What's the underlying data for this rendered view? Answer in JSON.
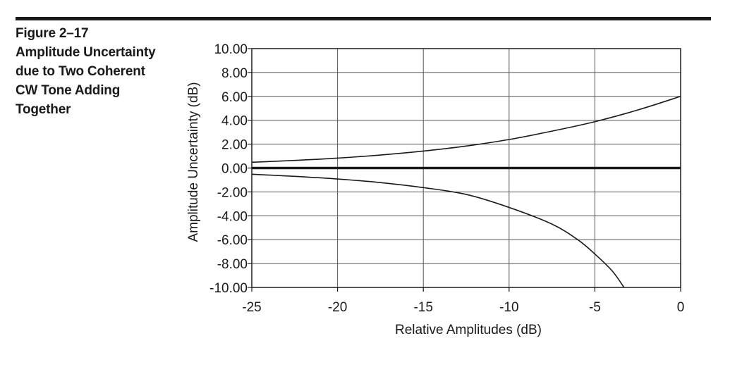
{
  "figure": {
    "label": "Figure 2–17",
    "caption_lines": [
      "Amplitude Uncertainty",
      "due to Two Coherent",
      "CW Tone Adding",
      "Together"
    ]
  },
  "chart_data": {
    "type": "line",
    "xlabel": "Relative Amplitudes (dB)",
    "ylabel": "Amplitude Uncertainty (dB)",
    "xlim": [
      -25,
      0
    ],
    "ylim": [
      -10,
      10
    ],
    "x_ticks": [
      -25,
      -20,
      -15,
      -10,
      -5,
      0
    ],
    "x_tick_labels": [
      "-25",
      "-20",
      "-15",
      "-10",
      "-5",
      "0"
    ],
    "y_ticks": [
      10,
      8,
      6,
      4,
      2,
      0,
      -2,
      -4,
      -6,
      -8,
      -10
    ],
    "y_tick_labels": [
      "10.00",
      "8.00",
      "6.00",
      "4.00",
      "2.00",
      "0.00",
      "-2.00",
      "-4.00",
      "-6.00",
      "-8.00",
      "-10.00"
    ],
    "grid": true,
    "zero_line": true,
    "series": [
      {
        "x": [
          -25,
          -22.5,
          -20,
          -17.5,
          -15,
          -12.5,
          -10,
          -7.5,
          -5,
          -2.5,
          0
        ],
        "values": [
          0.48,
          0.64,
          0.83,
          1.09,
          1.42,
          1.84,
          2.39,
          3.09,
          3.88,
          4.86,
          6.0
        ]
      },
      {
        "x": [
          -25,
          -22.5,
          -20,
          -17.5,
          -15,
          -12.5,
          -10,
          -7.5,
          -6,
          -5,
          -4,
          -3.3
        ],
        "values": [
          -0.52,
          -0.7,
          -0.92,
          -1.22,
          -1.64,
          -2.21,
          -3.3,
          -4.7,
          -6.0,
          -7.2,
          -8.6,
          -10.0
        ]
      }
    ]
  }
}
